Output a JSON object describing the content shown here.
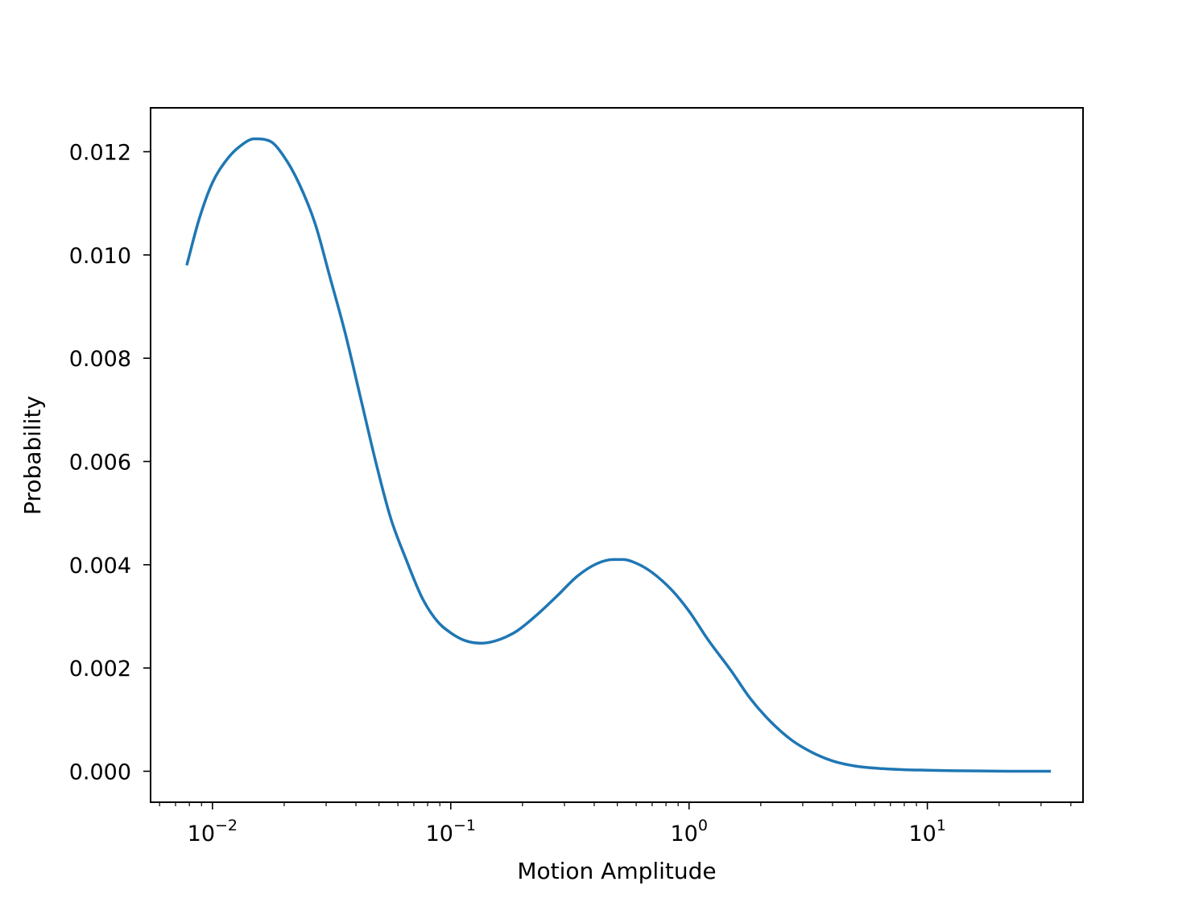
{
  "chart_data": {
    "type": "line",
    "title": "",
    "xlabel": "Motion Amplitude",
    "ylabel": "Probability",
    "xscale": "log",
    "xlim": [
      0.0055,
      45
    ],
    "ylim": [
      -0.0006,
      0.01285
    ],
    "grid": false,
    "legend": "none",
    "x_major_ticks": [
      0.01,
      0.1,
      1,
      10
    ],
    "x_tick_labels": [
      {
        "base": "10",
        "exp": "−2"
      },
      {
        "base": "10",
        "exp": "−1"
      },
      {
        "base": "10",
        "exp": "0"
      },
      {
        "base": "10",
        "exp": "1"
      }
    ],
    "y_ticks": [
      0.0,
      0.002,
      0.004,
      0.006,
      0.008,
      0.01,
      0.012
    ],
    "y_tick_labels": [
      "0.000",
      "0.002",
      "0.004",
      "0.006",
      "0.008",
      "0.010",
      "0.012"
    ],
    "series": [
      {
        "color": "#1f77b4",
        "x": [
          0.0078,
          0.0088,
          0.01,
          0.0115,
          0.013,
          0.015,
          0.0175,
          0.02,
          0.023,
          0.027,
          0.031,
          0.036,
          0.042,
          0.049,
          0.056,
          0.065,
          0.076,
          0.088,
          0.1,
          0.115,
          0.135,
          0.16,
          0.19,
          0.23,
          0.28,
          0.34,
          0.41,
          0.48,
          0.53,
          0.6,
          0.7,
          0.85,
          1.0,
          1.2,
          1.5,
          1.8,
          2.2,
          2.7,
          3.3,
          4.0,
          5.0,
          6.5,
          8.0,
          10.0,
          13.0,
          17.0,
          22.0,
          27.0,
          33.0
        ],
        "y": [
          0.0098,
          0.0107,
          0.0114,
          0.01185,
          0.0121,
          0.01225,
          0.0122,
          0.0119,
          0.0114,
          0.0106,
          0.0096,
          0.0085,
          0.0072,
          0.0059,
          0.0049,
          0.0041,
          0.00335,
          0.0029,
          0.00268,
          0.00253,
          0.00248,
          0.00255,
          0.00272,
          0.00303,
          0.0034,
          0.00378,
          0.00402,
          0.0041,
          0.0041,
          0.00403,
          0.00385,
          0.0035,
          0.0031,
          0.00255,
          0.00195,
          0.00142,
          0.00096,
          0.0006,
          0.00036,
          0.0002,
          0.0001,
          5e-05,
          3e-05,
          2e-05,
          1e-05,
          5e-06,
          0.0,
          0.0,
          0.0
        ]
      }
    ]
  }
}
